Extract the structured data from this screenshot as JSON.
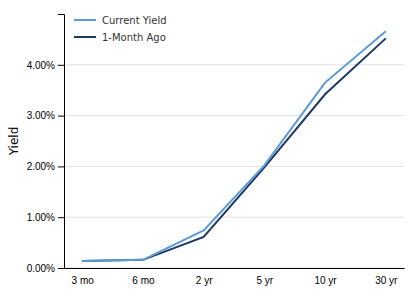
{
  "chart_data": {
    "type": "line",
    "y_label": "Yield",
    "categories": [
      "3 mo",
      "6 mo",
      "2 yr",
      "5 yr",
      "10 yr",
      "30 yr"
    ],
    "series": [
      {
        "name": "Current Yield",
        "color": "#5b9bd5",
        "values": [
          0.0014,
          0.0016,
          0.0074,
          0.0202,
          0.0365,
          0.0466
        ]
      },
      {
        "name": "1-Month Ago",
        "color": "#1f3864",
        "values": [
          0.0014,
          0.0016,
          0.0061,
          0.0198,
          0.0342,
          0.0452
        ]
      }
    ],
    "ylim": [
      0,
      0.05
    ],
    "yticks": [
      {
        "value": 0,
        "label": "0.00%"
      },
      {
        "value": 0.01,
        "label": "1.00%"
      },
      {
        "value": 0.02,
        "label": "2.00%"
      },
      {
        "value": 0.03,
        "label": "3.00%"
      },
      {
        "value": 0.04,
        "label": "4.00%"
      }
    ],
    "grid": true,
    "legend": "upper left"
  }
}
